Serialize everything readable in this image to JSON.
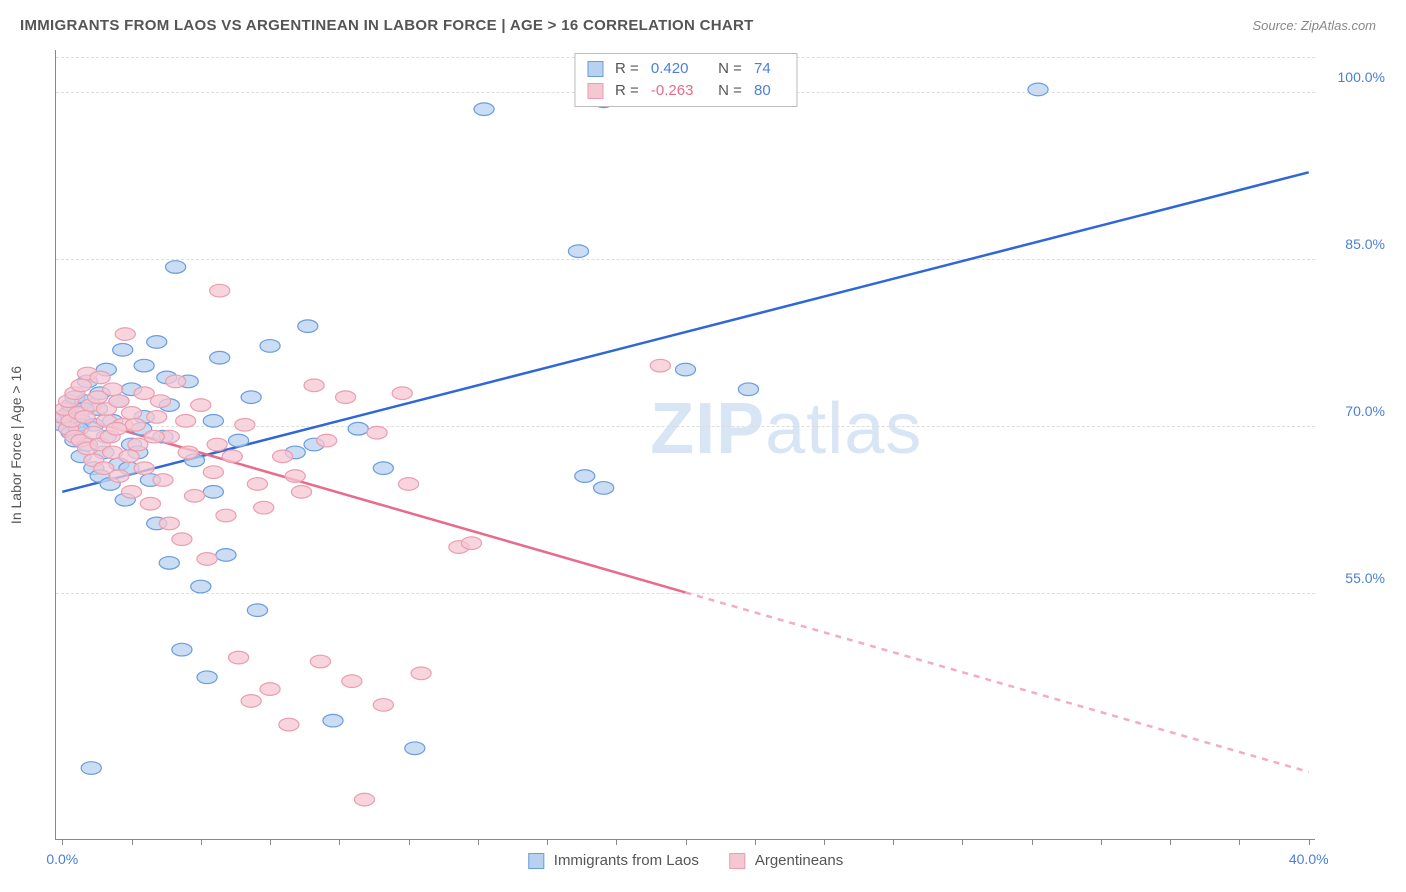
{
  "header": {
    "title": "IMMIGRANTS FROM LAOS VS ARGENTINEAN IN LABOR FORCE | AGE > 16 CORRELATION CHART",
    "source": "Source: ZipAtlas.com"
  },
  "watermark": {
    "bold": "ZIP",
    "light": "atlas"
  },
  "chart": {
    "type": "scatter",
    "background_color": "#ffffff",
    "grid_color": "#dddddd",
    "axis_color": "#888888",
    "xlim": [
      0,
      40
    ],
    "ylim": [
      35,
      105
    ],
    "x_tick_positions_pct": [
      0.5,
      6,
      11.5,
      17,
      22.5,
      28,
      33.5,
      39,
      44.5,
      50,
      55.5,
      61,
      66.5,
      72,
      77.5,
      83,
      88.5,
      94,
      99.5
    ],
    "x_tick_labels": [
      {
        "pos_pct": 0.5,
        "label": "0.0%"
      },
      {
        "pos_pct": 99.5,
        "label": "40.0%"
      }
    ],
    "y_ticks": [
      {
        "value": 100.0,
        "label": "100.0%",
        "pos_pct": 94.6
      },
      {
        "value": 85.0,
        "label": "85.0%",
        "pos_pct": 73.4
      },
      {
        "value": 70.0,
        "label": "70.0%",
        "pos_pct": 52.2
      },
      {
        "value": 55.0,
        "label": "55.0%",
        "pos_pct": 31.0
      }
    ],
    "grid_top_pos_pct": 99.0,
    "y_axis_label": "In Labor Force | Age > 16",
    "stats": {
      "series1": {
        "R": "0.420",
        "N": "74"
      },
      "series2": {
        "R": "-0.263",
        "N": "80"
      }
    },
    "series": [
      {
        "name": "Immigrants from Laos",
        "color_fill": "#b8d1ef",
        "color_stroke": "#6a9de0",
        "marker_radius": 8,
        "trend": {
          "color": "#2f68d6",
          "width": 2.5,
          "x1_pct": 0.5,
          "y1_pct": 44.0,
          "x2_pct": 99.5,
          "y2_pct": 84.5,
          "solid_until_pct": 99.5
        },
        "points": [
          [
            0.5,
            52.5
          ],
          [
            0.7,
            53.5
          ],
          [
            1.0,
            52.0
          ],
          [
            1.0,
            54.0
          ],
          [
            1.2,
            51.5
          ],
          [
            1.2,
            55.0
          ],
          [
            1.5,
            50.5
          ],
          [
            1.5,
            56.0
          ],
          [
            1.8,
            52.5
          ],
          [
            2.0,
            48.5
          ],
          [
            2.0,
            53.0
          ],
          [
            2.3,
            55.5
          ],
          [
            2.5,
            50.0
          ],
          [
            2.5,
            58.0
          ],
          [
            2.8,
            9.0
          ],
          [
            3.0,
            47.0
          ],
          [
            3.0,
            52.5
          ],
          [
            3.3,
            54.5
          ],
          [
            3.5,
            46.0
          ],
          [
            3.5,
            56.5
          ],
          [
            3.8,
            49.0
          ],
          [
            4.0,
            51.0
          ],
          [
            4.0,
            59.5
          ],
          [
            4.3,
            45.0
          ],
          [
            4.5,
            53.0
          ],
          [
            5.0,
            47.5
          ],
          [
            5.0,
            55.5
          ],
          [
            5.3,
            62.0
          ],
          [
            5.5,
            43.0
          ],
          [
            6.0,
            50.0
          ],
          [
            6.0,
            57.0
          ],
          [
            6.5,
            49.0
          ],
          [
            7.0,
            53.5
          ],
          [
            7.0,
            60.0
          ],
          [
            7.5,
            45.5
          ],
          [
            8.0,
            40.0
          ],
          [
            8.0,
            63.0
          ],
          [
            8.5,
            51.0
          ],
          [
            9.0,
            35.0
          ],
          [
            9.0,
            55.0
          ],
          [
            9.5,
            72.5
          ],
          [
            10.0,
            24.0
          ],
          [
            10.5,
            58.0
          ],
          [
            11.0,
            48.0
          ],
          [
            11.5,
            32.0
          ],
          [
            12.0,
            20.5
          ],
          [
            12.5,
            53.0
          ],
          [
            13.0,
            61.0
          ],
          [
            13.5,
            36.0
          ],
          [
            14.5,
            50.5
          ],
          [
            15.5,
            56.0
          ],
          [
            16.0,
            29.0
          ],
          [
            17.0,
            62.5
          ],
          [
            19.0,
            49.0
          ],
          [
            20.0,
            65.0
          ],
          [
            22.0,
            15.0
          ],
          [
            24.0,
            52.0
          ],
          [
            26.0,
            47.0
          ],
          [
            28.5,
            11.5
          ],
          [
            34.0,
            92.5
          ],
          [
            41.5,
            74.5
          ],
          [
            42.0,
            46.0
          ],
          [
            43.5,
            44.5
          ],
          [
            43.5,
            93.5
          ],
          [
            50.0,
            59.5
          ],
          [
            55.0,
            57.0
          ],
          [
            78.0,
            95.0
          ],
          [
            1.8,
            52.0
          ],
          [
            2.2,
            54.5
          ],
          [
            5.8,
            47.0
          ],
          [
            6.8,
            52.0
          ],
          [
            8.8,
            58.5
          ],
          [
            12.5,
            44.0
          ],
          [
            20.5,
            50.0
          ]
        ]
      },
      {
        "name": "Argentineans",
        "color_fill": "#f5c7d3",
        "color_stroke": "#ea9eb0",
        "marker_radius": 8,
        "trend": {
          "color": "#e86b8a",
          "width": 2.5,
          "x1_pct": 0.5,
          "y1_pct": 54.0,
          "x2_pct": 99.5,
          "y2_pct": 8.5,
          "solid_until_pct": 50.0
        },
        "points": [
          [
            0.5,
            53.5
          ],
          [
            0.7,
            54.5
          ],
          [
            1.0,
            52.0
          ],
          [
            1.0,
            55.5
          ],
          [
            1.2,
            53.0
          ],
          [
            1.5,
            51.0
          ],
          [
            1.5,
            56.5
          ],
          [
            1.8,
            54.0
          ],
          [
            2.0,
            50.5
          ],
          [
            2.0,
            57.5
          ],
          [
            2.3,
            53.5
          ],
          [
            2.5,
            49.5
          ],
          [
            2.5,
            59.0
          ],
          [
            2.8,
            55.0
          ],
          [
            3.0,
            48.0
          ],
          [
            3.0,
            51.5
          ],
          [
            3.3,
            56.0
          ],
          [
            3.5,
            50.0
          ],
          [
            3.5,
            58.5
          ],
          [
            3.8,
            47.0
          ],
          [
            4.0,
            53.0
          ],
          [
            4.0,
            54.5
          ],
          [
            4.3,
            51.0
          ],
          [
            4.5,
            49.0
          ],
          [
            4.5,
            57.0
          ],
          [
            5.0,
            46.0
          ],
          [
            5.0,
            55.5
          ],
          [
            5.3,
            52.5
          ],
          [
            5.5,
            64.0
          ],
          [
            5.8,
            48.5
          ],
          [
            6.0,
            44.0
          ],
          [
            6.0,
            54.0
          ],
          [
            6.5,
            50.0
          ],
          [
            7.0,
            47.0
          ],
          [
            7.0,
            56.5
          ],
          [
            7.5,
            42.5
          ],
          [
            8.0,
            53.5
          ],
          [
            8.5,
            45.5
          ],
          [
            9.0,
            40.0
          ],
          [
            9.0,
            51.0
          ],
          [
            9.5,
            58.0
          ],
          [
            10.0,
            38.0
          ],
          [
            10.5,
            49.0
          ],
          [
            11.0,
            43.5
          ],
          [
            11.5,
            55.0
          ],
          [
            12.0,
            35.5
          ],
          [
            12.5,
            46.5
          ],
          [
            13.0,
            69.5
          ],
          [
            13.5,
            41.0
          ],
          [
            14.5,
            23.0
          ],
          [
            15.0,
            52.5
          ],
          [
            15.5,
            17.5
          ],
          [
            16.0,
            45.0
          ],
          [
            17.0,
            19.0
          ],
          [
            18.0,
            48.5
          ],
          [
            18.5,
            14.5
          ],
          [
            19.5,
            44.0
          ],
          [
            20.5,
            57.5
          ],
          [
            21.0,
            22.5
          ],
          [
            23.0,
            56.0
          ],
          [
            23.5,
            20.0
          ],
          [
            24.5,
            5.0
          ],
          [
            25.5,
            51.5
          ],
          [
            26.0,
            17.0
          ],
          [
            27.5,
            56.5
          ],
          [
            29.0,
            21.0
          ],
          [
            32.0,
            37.0
          ],
          [
            33.0,
            37.5
          ],
          [
            48.0,
            60.0
          ],
          [
            6.3,
            52.5
          ],
          [
            7.8,
            51.0
          ],
          [
            8.3,
            55.5
          ],
          [
            10.3,
            53.0
          ],
          [
            12.8,
            50.0
          ],
          [
            14.0,
            48.5
          ],
          [
            16.5,
            42.0
          ],
          [
            19.0,
            46.0
          ],
          [
            21.5,
            50.5
          ],
          [
            28.0,
            45.0
          ],
          [
            4.8,
            52.0
          ]
        ]
      }
    ],
    "bottom_legend": [
      {
        "label": "Immigrants from Laos",
        "fill": "#b8d1ef",
        "stroke": "#6a9de0"
      },
      {
        "label": "Argentineans",
        "fill": "#f5c7d3",
        "stroke": "#ea9eb0"
      }
    ]
  }
}
